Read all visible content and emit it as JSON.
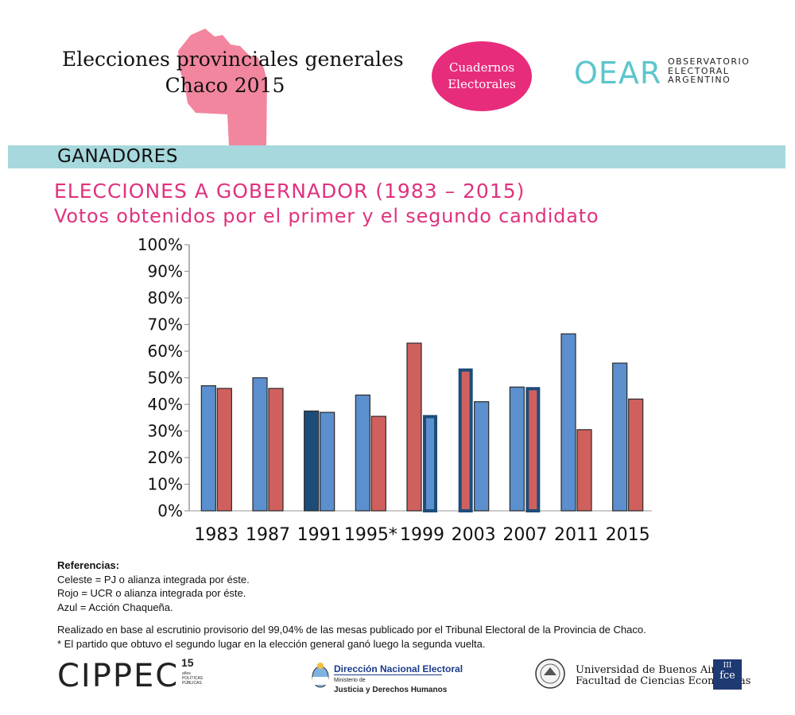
{
  "header": {
    "title_line1": "Elecciones provinciales generales",
    "title_line2": "Chaco 2015",
    "badge_line1": "Cuadernos",
    "badge_line2": "Electorales",
    "oear_logo": "OEAR",
    "oear_sub_line1": "OBSERVATORIO",
    "oear_sub_line2": "ELECTORAL",
    "oear_sub_line3": "ARGENTINO",
    "map_color": "#f2869e",
    "badge_color": "#e82c7c",
    "oear_color": "#5cc6cc"
  },
  "section": {
    "band_label": "GANADORES",
    "band_color": "#a6d8dd",
    "heading": "ELECCIONES A GOBERNADOR (1983 – 2015)",
    "subheading": "Votos obtenidos por el primer y el segundo candidato",
    "accent_color": "#e0327e"
  },
  "chart_data": {
    "type": "bar",
    "title": "",
    "xlabel": "",
    "ylabel": "",
    "ylim": [
      0,
      100
    ],
    "yticks": [
      "0%",
      "10%",
      "20%",
      "30%",
      "40%",
      "50%",
      "60%",
      "70%",
      "80%",
      "90%",
      "100%"
    ],
    "categories": [
      "1983",
      "1987",
      "1991",
      "1995*",
      "1999",
      "2003",
      "2007",
      "2011",
      "2015"
    ],
    "legend": "none",
    "party_colors": {
      "PJ": "#5b8fce",
      "UCR": "#d0605e",
      "AC": "#1e4c7a"
    },
    "series": [
      {
        "name": "Primer candidato",
        "values": [
          47,
          50,
          37.5,
          43.5,
          63,
          53.5,
          46.5,
          66.5,
          55.5
        ],
        "parties": [
          "PJ",
          "PJ",
          "AC",
          "PJ",
          "UCR",
          "UCR",
          "PJ",
          "PJ",
          "PJ"
        ],
        "alliance_border": [
          false,
          false,
          false,
          false,
          false,
          true,
          false,
          false,
          false
        ]
      },
      {
        "name": "Segundo candidato",
        "values": [
          46,
          46,
          37,
          35.5,
          36,
          41,
          46.5,
          30.5,
          42
        ],
        "parties": [
          "UCR",
          "UCR",
          "PJ",
          "UCR",
          "PJ",
          "PJ",
          "UCR",
          "UCR",
          "UCR"
        ],
        "alliance_border": [
          false,
          false,
          false,
          false,
          true,
          false,
          true,
          false,
          false
        ]
      }
    ]
  },
  "references": {
    "title": "Referencias:",
    "line1": "Celeste = PJ o alianza integrada por éste.",
    "line2": "Rojo = UCR o alianza integrada por éste.",
    "line3": "Azul = Acción Chaqueña."
  },
  "notes": {
    "line1": "Realizado en base al escrutinio provisorio del 99,04% de las mesas publicado por el Tribunal Electoral de la Provincia de Chaco.",
    "line2": "* El partido que obtuvo el segundo lugar en la elección general ganó luego la segunda vuelta."
  },
  "footer": {
    "cippec": "CIPPEC",
    "cippec_years": "15",
    "cippec_years_sub": "años",
    "cippec_sub_line1": "POLÍTICAS",
    "cippec_sub_line2": "PÚBLICAS",
    "dne_title": "Dirección Nacional Electoral",
    "dne_sub1": "Ministerio de",
    "dne_sub2": "Justicia y Derechos Humanos",
    "uba_line1": "Universidad de Buenos Aires",
    "uba_line2": "Facultad de Ciencias Económicas",
    "fce_logo": "fce"
  }
}
